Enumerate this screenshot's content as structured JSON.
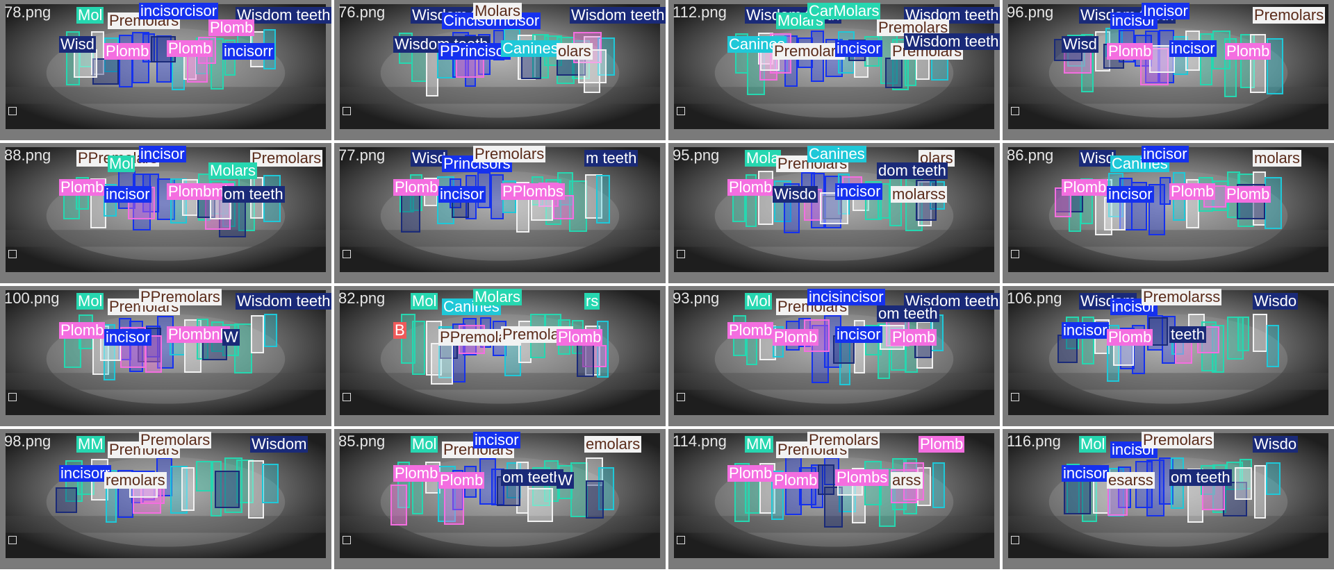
{
  "classes": {
    "Molars": {
      "color": "#26d7b0",
      "text": "#ffffff"
    },
    "Premolars": {
      "color": "#f2f2f2",
      "text": "#5a2b1a"
    },
    "Canines": {
      "color": "#1fc8d8",
      "text": "#ffffff"
    },
    "incisor": {
      "color": "#1531ee",
      "text": "#ffffff"
    },
    "Wisdom teeth": {
      "color": "#1a2a78",
      "text": "#ffffff"
    },
    "Plomb": {
      "color": "#f46ee0",
      "text": "#ffffff"
    },
    "Bridge": {
      "color": "#f05a5a",
      "text": "#ffffff"
    }
  },
  "tiles": [
    {
      "file": "78.png",
      "labels": [
        {
          "text": "Mol",
          "cls": "Molars"
        },
        {
          "text": "Premolars",
          "cls": "Premolars"
        },
        {
          "text": "incisorcisor",
          "cls": "incisor"
        },
        {
          "text": "Wisdom teeth",
          "cls": "Wisdom teeth"
        },
        {
          "text": "Wisd",
          "cls": "Wisdom teeth"
        },
        {
          "text": "Plomb",
          "cls": "Plomb"
        },
        {
          "text": "Plomb",
          "cls": "Plomb"
        },
        {
          "text": "incisorr",
          "cls": "incisor"
        },
        {
          "text": "Plomb",
          "cls": "Plomb"
        }
      ]
    },
    {
      "file": "76.png",
      "labels": [
        {
          "text": "Wisdom teeth",
          "cls": "Wisdom teeth"
        },
        {
          "text": "Cincisorncisor",
          "cls": "incisor"
        },
        {
          "text": "Molars",
          "cls": "Premolars"
        },
        {
          "text": "Wisdom teeth",
          "cls": "Wisdom teeth"
        },
        {
          "text": "Wisdom teeth",
          "cls": "Wisdom teeth"
        },
        {
          "text": "PPrincisor",
          "cls": "incisor"
        },
        {
          "text": "Canines",
          "cls": "Canines"
        },
        {
          "text": "olars",
          "cls": "Premolars"
        }
      ]
    },
    {
      "file": "112.png",
      "labels": [
        {
          "text": "Wisdom teeth",
          "cls": "Wisdom teeth"
        },
        {
          "text": "Molars",
          "cls": "Molars"
        },
        {
          "text": "CarMolars",
          "cls": "Molars"
        },
        {
          "text": "Wisdom teeth",
          "cls": "Wisdom teeth"
        },
        {
          "text": "Canines",
          "cls": "Canines"
        },
        {
          "text": "Premolars",
          "cls": "Premolars"
        },
        {
          "text": "incisor",
          "cls": "incisor"
        },
        {
          "text": "Premolars",
          "cls": "Premolars"
        },
        {
          "text": "Premolars",
          "cls": "Premolars"
        },
        {
          "text": "Wisdom teeth",
          "cls": "Wisdom teeth"
        }
      ]
    },
    {
      "file": "96.png",
      "labels": [
        {
          "text": "Wisdom teeth",
          "cls": "Wisdom teeth"
        },
        {
          "text": "incisor",
          "cls": "incisor"
        },
        {
          "text": "Incisor",
          "cls": "incisor"
        },
        {
          "text": "Premolars",
          "cls": "Premolars"
        },
        {
          "text": "Wisd",
          "cls": "Wisdom teeth"
        },
        {
          "text": "Plomb",
          "cls": "Plomb"
        },
        {
          "text": "incisor",
          "cls": "incisor"
        },
        {
          "text": "Plomb",
          "cls": "Plomb"
        }
      ]
    },
    {
      "file": "88.png",
      "labels": [
        {
          "text": "PPremolars",
          "cls": "Premolars"
        },
        {
          "text": "Mol",
          "cls": "Molars"
        },
        {
          "text": "incisor",
          "cls": "incisor"
        },
        {
          "text": "Premolars",
          "cls": "Premolars"
        },
        {
          "text": "Plomb",
          "cls": "Plomb"
        },
        {
          "text": "incisor",
          "cls": "incisor"
        },
        {
          "text": "Plombmb",
          "cls": "Plomb"
        },
        {
          "text": "om teeth",
          "cls": "Wisdom teeth"
        },
        {
          "text": "Molars",
          "cls": "Molars"
        }
      ]
    },
    {
      "file": "77.png",
      "labels": [
        {
          "text": "Wisd",
          "cls": "Wisdom teeth"
        },
        {
          "text": "Princisors",
          "cls": "incisor"
        },
        {
          "text": "Premolars",
          "cls": "Premolars"
        },
        {
          "text": "m teeth",
          "cls": "Wisdom teeth"
        },
        {
          "text": "Plomb",
          "cls": "Plomb"
        },
        {
          "text": "incisor",
          "cls": "incisor"
        },
        {
          "text": "PPlombs",
          "cls": "Plomb"
        }
      ]
    },
    {
      "file": "95.png",
      "labels": [
        {
          "text": "Mola",
          "cls": "Molars"
        },
        {
          "text": "Premolars",
          "cls": "Premolars"
        },
        {
          "text": "Canines",
          "cls": "Canines"
        },
        {
          "text": "olars",
          "cls": "Premolars"
        },
        {
          "text": "Plomb",
          "cls": "Plomb"
        },
        {
          "text": "Wisdo",
          "cls": "Wisdom teeth"
        },
        {
          "text": "incisor",
          "cls": "incisor"
        },
        {
          "text": "molarss",
          "cls": "Premolars"
        },
        {
          "text": "dom teeth",
          "cls": "Wisdom teeth"
        }
      ]
    },
    {
      "file": "86.png",
      "labels": [
        {
          "text": "Wisd",
          "cls": "Wisdom teeth"
        },
        {
          "text": "Canines",
          "cls": "Canines"
        },
        {
          "text": "incisor",
          "cls": "incisor"
        },
        {
          "text": "molars",
          "cls": "Premolars"
        },
        {
          "text": "Plomb",
          "cls": "Plomb"
        },
        {
          "text": "incisor",
          "cls": "incisor"
        },
        {
          "text": "Plomb",
          "cls": "Plomb"
        },
        {
          "text": "Plomb",
          "cls": "Plomb"
        }
      ]
    },
    {
      "file": "100.png",
      "labels": [
        {
          "text": "Mol",
          "cls": "Molars"
        },
        {
          "text": "Premolars",
          "cls": "Premolars"
        },
        {
          "text": "PPremolars",
          "cls": "Premolars"
        },
        {
          "text": "Wisdom teeth",
          "cls": "Wisdom teeth"
        },
        {
          "text": "Plomb",
          "cls": "Plomb"
        },
        {
          "text": "incisor",
          "cls": "incisor"
        },
        {
          "text": "Plombnb",
          "cls": "Plomb"
        },
        {
          "text": "W",
          "cls": "Wisdom teeth"
        }
      ]
    },
    {
      "file": "82.png",
      "labels": [
        {
          "text": "Mol",
          "cls": "Molars"
        },
        {
          "text": "Canines",
          "cls": "Canines"
        },
        {
          "text": "Molars",
          "cls": "Molars"
        },
        {
          "text": "rs",
          "cls": "Molars"
        },
        {
          "text": "B",
          "cls": "Bridge"
        },
        {
          "text": "PPremolars",
          "cls": "Premolars"
        },
        {
          "text": "Premolars",
          "cls": "Premolars"
        },
        {
          "text": "Plomb",
          "cls": "Plomb"
        }
      ]
    },
    {
      "file": "93.png",
      "labels": [
        {
          "text": "Mol",
          "cls": "Molars"
        },
        {
          "text": "Premolars",
          "cls": "Premolars"
        },
        {
          "text": "incisincisor",
          "cls": "incisor"
        },
        {
          "text": "Wisdom teeth",
          "cls": "Wisdom teeth"
        },
        {
          "text": "Plomb",
          "cls": "Plomb"
        },
        {
          "text": "Plomb",
          "cls": "Plomb"
        },
        {
          "text": "incisor",
          "cls": "incisor"
        },
        {
          "text": "Plomb",
          "cls": "Plomb"
        },
        {
          "text": "om teeth",
          "cls": "Wisdom teeth"
        }
      ]
    },
    {
      "file": "106.png",
      "labels": [
        {
          "text": "Wisdom",
          "cls": "Wisdom teeth"
        },
        {
          "text": "incisor",
          "cls": "incisor"
        },
        {
          "text": "Premolarss",
          "cls": "Premolars"
        },
        {
          "text": "Wisdo",
          "cls": "Wisdom teeth"
        },
        {
          "text": "incisor",
          "cls": "incisor"
        },
        {
          "text": "Plomb",
          "cls": "Plomb"
        },
        {
          "text": "teeth",
          "cls": "Wisdom teeth"
        }
      ]
    },
    {
      "file": "98.png",
      "labels": [
        {
          "text": "MM",
          "cls": "Molars"
        },
        {
          "text": "Premolars",
          "cls": "Premolars"
        },
        {
          "text": "Premolars",
          "cls": "Premolars"
        },
        {
          "text": "Wisdom",
          "cls": "Wisdom teeth"
        },
        {
          "text": "incisorr",
          "cls": "incisor"
        },
        {
          "text": "remolars",
          "cls": "Premolars"
        }
      ]
    },
    {
      "file": "85.png",
      "labels": [
        {
          "text": "Mol",
          "cls": "Molars"
        },
        {
          "text": "Premolars",
          "cls": "Premolars"
        },
        {
          "text": "incisor",
          "cls": "incisor"
        },
        {
          "text": "emolars",
          "cls": "Premolars"
        },
        {
          "text": "Plomb",
          "cls": "Plomb"
        },
        {
          "text": "Plomb",
          "cls": "Plomb"
        },
        {
          "text": "om teeth",
          "cls": "Wisdom teeth"
        },
        {
          "text": "W",
          "cls": "Wisdom teeth"
        }
      ]
    },
    {
      "file": "114.png",
      "labels": [
        {
          "text": "MM",
          "cls": "Molars"
        },
        {
          "text": "Premolars",
          "cls": "Premolars"
        },
        {
          "text": "Premolars",
          "cls": "Premolars"
        },
        {
          "text": "Plomb",
          "cls": "Plomb"
        },
        {
          "text": "Plomb",
          "cls": "Plomb"
        },
        {
          "text": "Plomb",
          "cls": "Plomb"
        },
        {
          "text": "Plombs",
          "cls": "Plomb"
        },
        {
          "text": "arss",
          "cls": "Premolars"
        }
      ]
    },
    {
      "file": "116.png",
      "labels": [
        {
          "text": "Mol",
          "cls": "Molars"
        },
        {
          "text": "incisor",
          "cls": "incisor"
        },
        {
          "text": "Premolars",
          "cls": "Premolars"
        },
        {
          "text": "Wisdo",
          "cls": "Wisdom teeth"
        },
        {
          "text": "incisor",
          "cls": "incisor"
        },
        {
          "text": "esarss",
          "cls": "Premolars"
        },
        {
          "text": "om teeth",
          "cls": "Wisdom teeth"
        }
      ]
    }
  ]
}
